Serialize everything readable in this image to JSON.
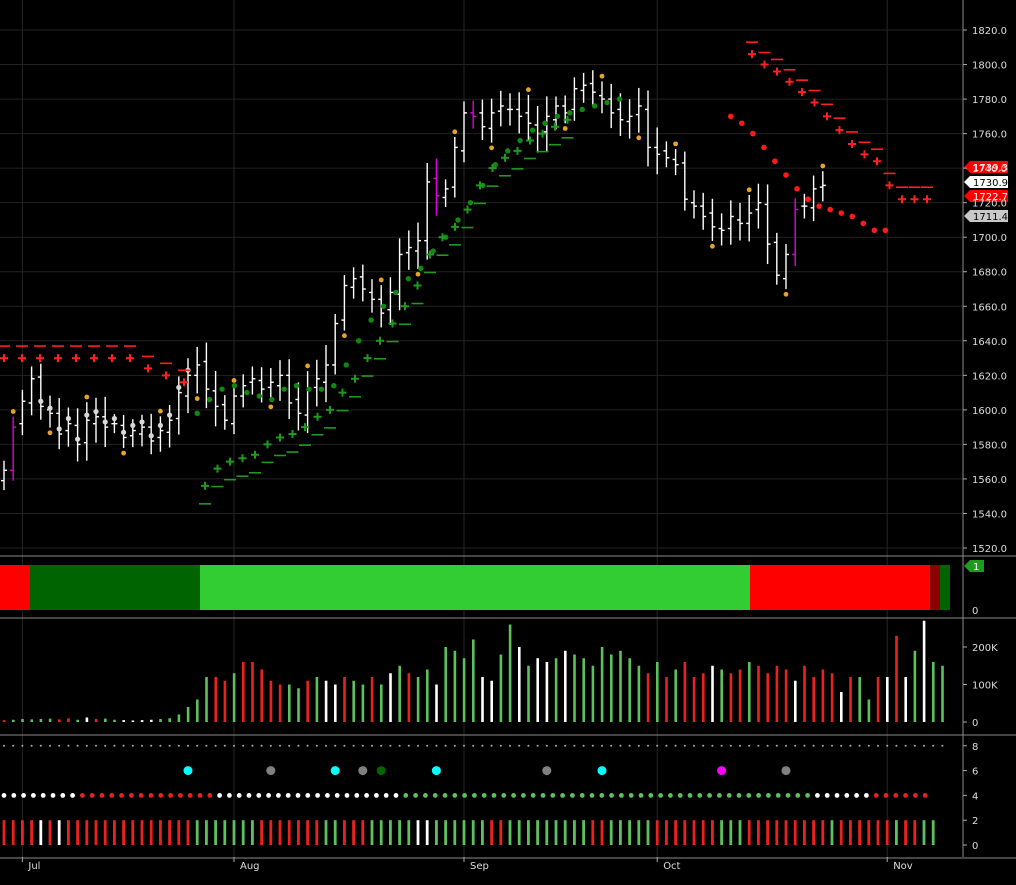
{
  "chart_data": [
    {
      "type": "ohlc",
      "panel": "price",
      "y_ticks": [
        "1520.0",
        "1540.0",
        "1560.0",
        "1580.0",
        "1600.0",
        "1620.0",
        "1640.0",
        "1660.0",
        "1680.0",
        "1700.0",
        "1720.0",
        "1740.0",
        "1760.0",
        "1780.0",
        "1800.0",
        "1820.0"
      ],
      "ylim": [
        1514,
        1828
      ],
      "x_ticks": [
        "Jul",
        "Aug",
        "Sep",
        "Oct",
        "Nov"
      ],
      "price_labels": [
        {
          "text": "1739.3",
          "value": 1739.3,
          "color": "#ff0000"
        },
        {
          "text": "1730.9",
          "value": 1730.9,
          "color": "#ffffff"
        },
        {
          "text": "1722.7",
          "value": 1722.7,
          "color": "#ff0000"
        },
        {
          "text": "1711.4",
          "value": 1711.4,
          "color": "#c8c8c8"
        }
      ],
      "closes": [
        1565,
        1590,
        1605,
        1618,
        1602,
        1598,
        1586,
        1592,
        1580,
        1594,
        1596,
        1590,
        1592,
        1584,
        1588,
        1590,
        1582,
        1588,
        1594,
        1610,
        1620,
        1626,
        1612,
        1602,
        1594,
        1608,
        1614,
        1618,
        1612,
        1616,
        1620,
        1604,
        1598,
        1612,
        1618,
        1626,
        1650,
        1672,
        1676,
        1670,
        1664,
        1656,
        1668,
        1690,
        1694,
        1698,
        1732,
        1724,
        1728,
        1752,
        1772,
        1770,
        1764,
        1772,
        1776,
        1774,
        1770,
        1766,
        1760,
        1770,
        1776,
        1772,
        1786,
        1788,
        1784,
        1780,
        1772,
        1768,
        1770,
        1776,
        1752,
        1748,
        1746,
        1742,
        1722,
        1718,
        1712,
        1706,
        1704,
        1712,
        1708,
        1714,
        1720,
        1696,
        1678,
        1690,
        1716,
        1718,
        1728,
        1730
      ],
      "support_dots": [
        1598,
        1606,
        1612,
        1614,
        1610,
        1608,
        1606,
        1612,
        1614,
        1612,
        1612,
        1614,
        1626,
        1640,
        1652,
        1660,
        1668,
        1676,
        1682,
        1692,
        1700,
        1710,
        1720,
        1730,
        1742,
        1750,
        1756,
        1762,
        1766,
        1770,
        1772,
        1774,
        1776,
        1778,
        1780
      ],
      "resistance_dots": [
        1770,
        1766,
        1760,
        1752,
        1744,
        1736,
        1728,
        1722,
        1718,
        1716,
        1714,
        1712,
        1708,
        1704,
        1704
      ],
      "bull_cross": [
        1556,
        1566,
        1570,
        1572,
        1574,
        1580,
        1584,
        1586,
        1590,
        1596,
        1600,
        1610,
        1618,
        1630,
        1640,
        1650,
        1660,
        1672,
        1690,
        1700,
        1706,
        1716,
        1730,
        1740,
        1746,
        1750,
        1756,
        1760,
        1764,
        1768
      ],
      "bear_cross": [
        1630,
        1630,
        1630,
        1630,
        1630,
        1630,
        1630,
        1630,
        1624,
        1620,
        1616,
        1806,
        1800,
        1796,
        1790,
        1784,
        1778,
        1770,
        1762,
        1754,
        1748,
        1744,
        1730,
        1722,
        1722,
        1722
      ]
    },
    {
      "type": "heatmap",
      "panel": "trend-state",
      "segments": [
        {
          "color": "#ff0000",
          "bars": 3
        },
        {
          "color": "#006400",
          "bars": 17
        },
        {
          "color": "#32cd32",
          "bars": 55
        },
        {
          "color": "#ff0000",
          "bars": 18
        },
        {
          "color": "#8b0000",
          "bars": 1
        },
        {
          "color": "#006400",
          "bars": 1
        }
      ],
      "y_ticks": [
        "0"
      ],
      "badge": "1"
    },
    {
      "type": "bar",
      "panel": "volume",
      "y_ticks": [
        "0",
        "100K",
        "200K"
      ],
      "ylim": [
        0,
        280000
      ],
      "values": [
        5000,
        6000,
        8000,
        7000,
        8000,
        9000,
        7000,
        10000,
        6000,
        12000,
        8000,
        9000,
        6000,
        5000,
        4000,
        5000,
        6000,
        8000,
        10000,
        20000,
        40000,
        60000,
        120000,
        120000,
        110000,
        130000,
        160000,
        160000,
        140000,
        110000,
        100000,
        100000,
        90000,
        110000,
        120000,
        110000,
        100000,
        120000,
        110000,
        100000,
        120000,
        100000,
        130000,
        150000,
        130000,
        120000,
        140000,
        100000,
        200000,
        190000,
        170000,
        220000,
        120000,
        110000,
        180000,
        260000,
        200000,
        150000,
        170000,
        160000,
        170000,
        190000,
        180000,
        170000,
        150000,
        200000,
        180000,
        190000,
        170000,
        150000,
        130000,
        160000,
        120000,
        140000,
        160000,
        120000,
        130000,
        150000,
        140000,
        130000,
        140000,
        160000,
        150000,
        130000,
        150000,
        140000,
        110000,
        150000,
        120000,
        140000,
        130000,
        80000,
        120000,
        120000,
        60000,
        120000,
        120000,
        230000,
        120000,
        190000,
        270000,
        160000,
        150000
      ],
      "colors": [
        "r",
        "g",
        "g",
        "g",
        "g",
        "g",
        "r",
        "r",
        "g",
        "w",
        "r",
        "g",
        "g",
        "w",
        "w",
        "w",
        "w",
        "g",
        "g",
        "g",
        "g",
        "g",
        "g",
        "r",
        "r",
        "g",
        "r",
        "r",
        "r",
        "r",
        "r",
        "g",
        "g",
        "r",
        "g",
        "w",
        "w",
        "r",
        "g",
        "g",
        "r",
        "g",
        "w",
        "g",
        "r",
        "g",
        "g",
        "w",
        "g",
        "g",
        "g",
        "g",
        "w",
        "w",
        "g",
        "g",
        "w",
        "g",
        "w",
        "w",
        "g",
        "w",
        "g",
        "g",
        "g",
        "g",
        "g",
        "g",
        "g",
        "g",
        "r",
        "g",
        "r",
        "g",
        "r",
        "r",
        "r",
        "w",
        "g",
        "r",
        "r",
        "g",
        "r",
        "r",
        "r",
        "r",
        "w",
        "r",
        "r",
        "r",
        "r",
        "w",
        "r",
        "g",
        "g",
        "r",
        "w",
        "r",
        "w",
        "g",
        "w",
        "g",
        "g"
      ]
    },
    {
      "type": "scatter",
      "panel": "dot-signals",
      "y_ticks": [
        "0",
        "2",
        "4",
        "6",
        "8"
      ],
      "ylim": [
        -0.2,
        8.2
      ],
      "signals": [
        {
          "x": 20,
          "y": 6,
          "color": "#00ffff"
        },
        {
          "x": 29,
          "y": 6,
          "color": "#808080"
        },
        {
          "x": 36,
          "y": 6,
          "color": "#00ffff"
        },
        {
          "x": 39,
          "y": 6,
          "color": "#808080"
        },
        {
          "x": 41,
          "y": 6,
          "color": "#006400"
        },
        {
          "x": 47,
          "y": 6,
          "color": "#00ffff"
        },
        {
          "x": 59,
          "y": 6,
          "color": "#808080"
        },
        {
          "x": 65,
          "y": 6,
          "color": "#00ffff"
        },
        {
          "x": 78,
          "y": 6,
          "color": "#ff00ff"
        },
        {
          "x": 85,
          "y": 6,
          "color": "#808080"
        }
      ],
      "row4_colors": "wwwwwwwwrrrrrrrrrrrrrrwwwwwwwwwwwwwwwwwwwggggggggggggggggggggggggggggggggggggggggggwwwwwwrrrrrr",
      "row1_colors": "rrrrwrwrrrrrrrrrrrrrrgggggggrrrrrrrggrrrgggggwwggggggrrgggggggggrrgggggrrrrrrrgggrrrrrrrrrgrrrrrrgrrgg"
    }
  ]
}
